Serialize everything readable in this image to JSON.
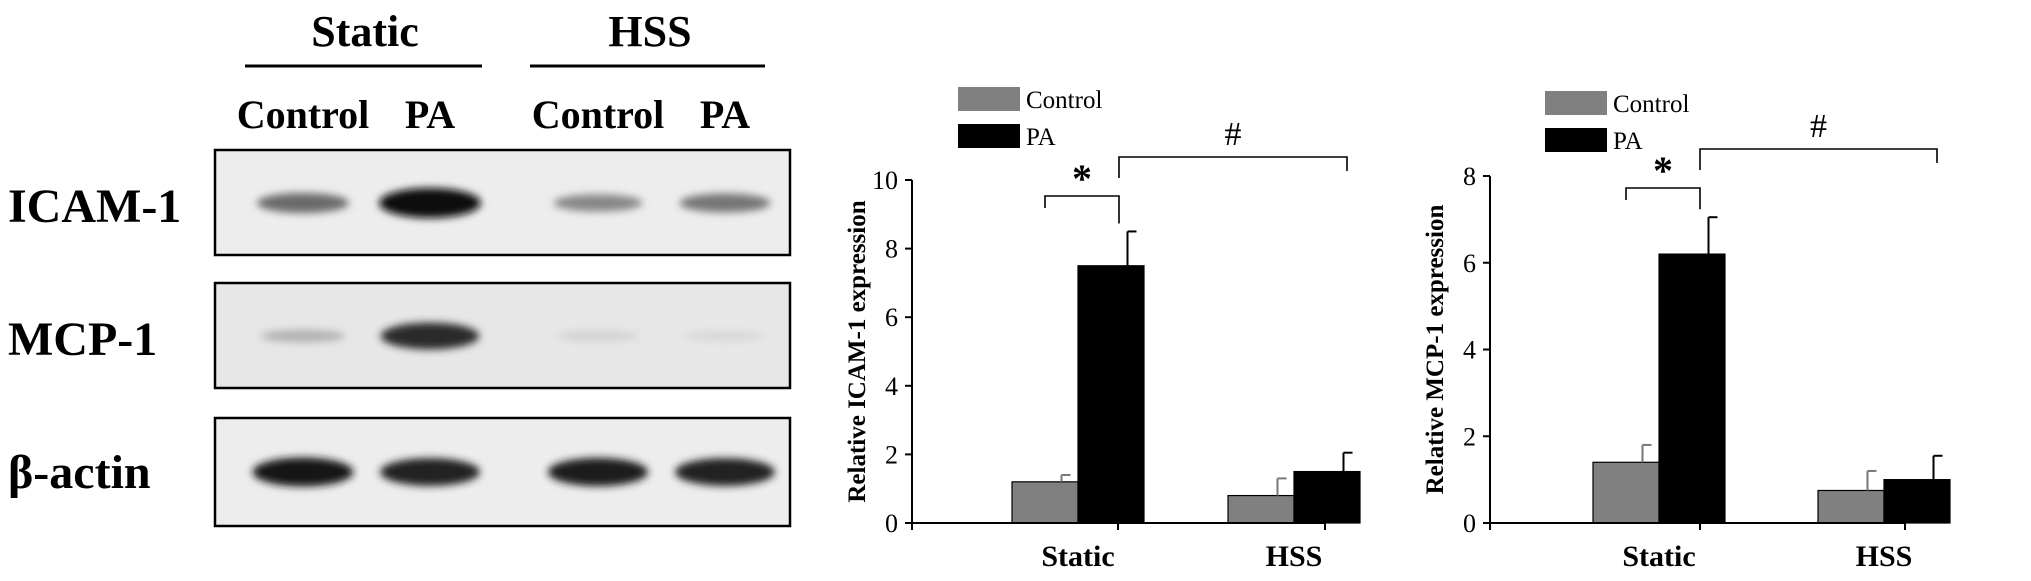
{
  "western_blot": {
    "group_labels": [
      "Static",
      "HSS"
    ],
    "lane_labels": [
      "Control",
      "PA",
      "Control",
      "PA"
    ],
    "proteins": [
      {
        "name": "ICAM-1",
        "band_intensity": [
          0.55,
          1.0,
          0.42,
          0.5
        ]
      },
      {
        "name": "MCP-1",
        "band_intensity": [
          0.22,
          0.85,
          0.08,
          0.05
        ]
      },
      {
        "name": "β-actin",
        "band_intensity": [
          0.95,
          0.9,
          0.92,
          0.9
        ]
      }
    ]
  },
  "chart_data": [
    {
      "type": "bar",
      "ylabel": "Relative ICAM-1 expression",
      "categories": [
        "Static",
        "HSS"
      ],
      "series": [
        {
          "name": "Control",
          "color": "#808080",
          "values": [
            1.2,
            0.8
          ],
          "errors": [
            0.2,
            0.5
          ]
        },
        {
          "name": "PA",
          "color": "#000000",
          "values": [
            7.5,
            1.5
          ],
          "errors": [
            1.0,
            0.55
          ]
        }
      ],
      "ylim": [
        0,
        10
      ],
      "yticks": [
        0,
        2,
        4,
        6,
        8,
        10
      ],
      "legend": "top-left",
      "grid": false,
      "annotations": [
        {
          "text": "*",
          "between": "Static Control vs Static PA"
        },
        {
          "text": "#",
          "between": "Static PA vs HSS PA"
        }
      ]
    },
    {
      "type": "bar",
      "ylabel": "Relative MCP-1 expression",
      "categories": [
        "Static",
        "HSS"
      ],
      "series": [
        {
          "name": "Control",
          "color": "#808080",
          "values": [
            1.4,
            0.75
          ],
          "errors": [
            0.4,
            0.45
          ]
        },
        {
          "name": "PA",
          "color": "#000000",
          "values": [
            6.2,
            1.0
          ],
          "errors": [
            0.85,
            0.55
          ]
        }
      ],
      "ylim": [
        0,
        8
      ],
      "yticks": [
        0,
        2,
        4,
        6,
        8
      ],
      "legend": "top-left",
      "grid": false,
      "annotations": [
        {
          "text": "*",
          "between": "Static Control vs Static PA"
        },
        {
          "text": "#",
          "between": "Static PA vs HSS PA"
        }
      ]
    }
  ]
}
